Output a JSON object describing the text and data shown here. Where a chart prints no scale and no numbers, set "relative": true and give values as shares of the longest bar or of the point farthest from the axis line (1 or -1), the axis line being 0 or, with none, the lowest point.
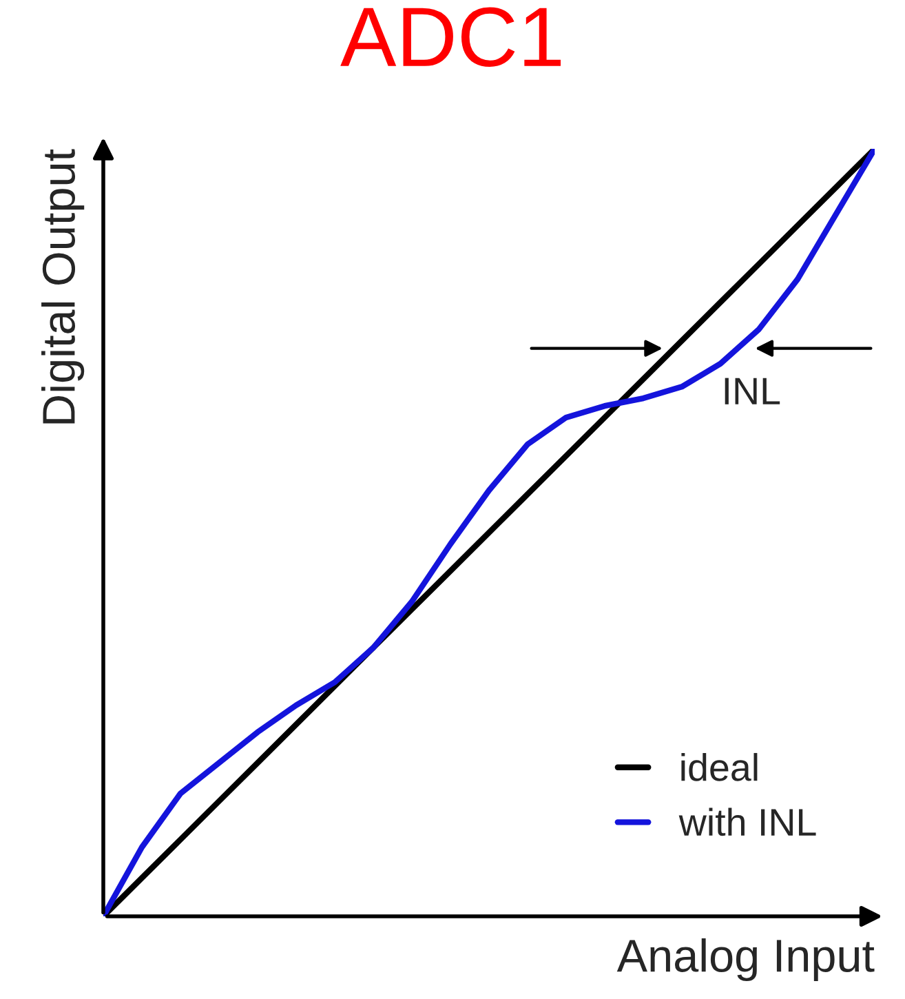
{
  "chart_data": {
    "type": "line",
    "title": "ADC1",
    "xlabel": "Analog Input",
    "ylabel": "Digital Output",
    "relative": true,
    "categories": [
      null,
      null,
      null,
      null,
      null,
      null,
      null,
      null,
      null,
      null,
      null,
      null,
      null,
      null,
      null,
      null,
      null,
      null,
      null,
      null,
      null
    ],
    "series": [
      {
        "name": "ideal",
        "color": "#000000",
        "values": [
          0,
          0.05,
          0.1,
          0.15,
          0.2,
          0.25,
          0.3,
          0.35,
          0.4,
          0.45,
          0.5,
          0.55,
          0.6,
          0.65,
          0.7,
          0.75,
          0.8,
          0.85,
          0.9,
          0.95,
          1
        ]
      },
      {
        "name": "with INL",
        "color": "#1414dc",
        "values": [
          0,
          0.09,
          0.16,
          0.2,
          0.24,
          0.275,
          0.305,
          0.35,
          0.41,
          0.485,
          0.555,
          0.615,
          0.65,
          0.665,
          0.675,
          0.69,
          0.72,
          0.765,
          0.83,
          0.915,
          1
        ]
      }
    ],
    "annotations": [
      "INL"
    ],
    "legend": "bottom right",
    "grid": false
  }
}
